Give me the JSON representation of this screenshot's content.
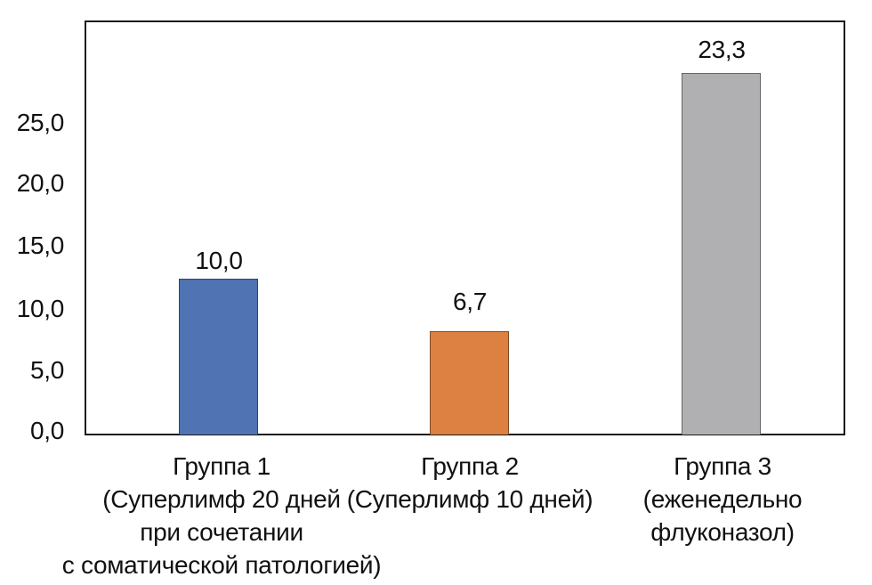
{
  "chart_data": {
    "type": "bar",
    "title": "",
    "xlabel": "",
    "ylabel": "",
    "categories": [
      "Группа 1 (Суперлимф 20 дней при сочетании с соматической патологией)",
      "Группа 2 (Суперлимф 10 дней)",
      "Группа 3 (еженедельно флуконазол)"
    ],
    "values": [
      10.0,
      6.7,
      23.3
    ],
    "ylim": [
      0,
      25
    ],
    "grid": false,
    "legend": false,
    "decimal_style": "comma",
    "y_axis": {
      "ticks": [
        "25,0",
        "20,0",
        "15,0",
        "10,0",
        "5,0",
        "0,0"
      ]
    },
    "bars": [
      {
        "name": "group-1",
        "label_lines": "Группа 1\n(Суперлимф 20 дней\nпри сочетании\nс соматической патологией)",
        "value": 10.0,
        "value_label": "10,0",
        "fill": "#4F73B3",
        "border": "#2E4369"
      },
      {
        "name": "group-2",
        "label_lines": "Группа 2\n(Суперлимф 10 дней)",
        "value": 6.7,
        "value_label": "6,7",
        "fill": "#DC8142",
        "border": "#7A4A22"
      },
      {
        "name": "group-3",
        "label_lines": "Группа 3\n(еженедельно\nфлуконазол)",
        "value": 23.3,
        "value_label": "23,3",
        "fill": "#B0B0B3",
        "border": "#66666A"
      }
    ]
  }
}
